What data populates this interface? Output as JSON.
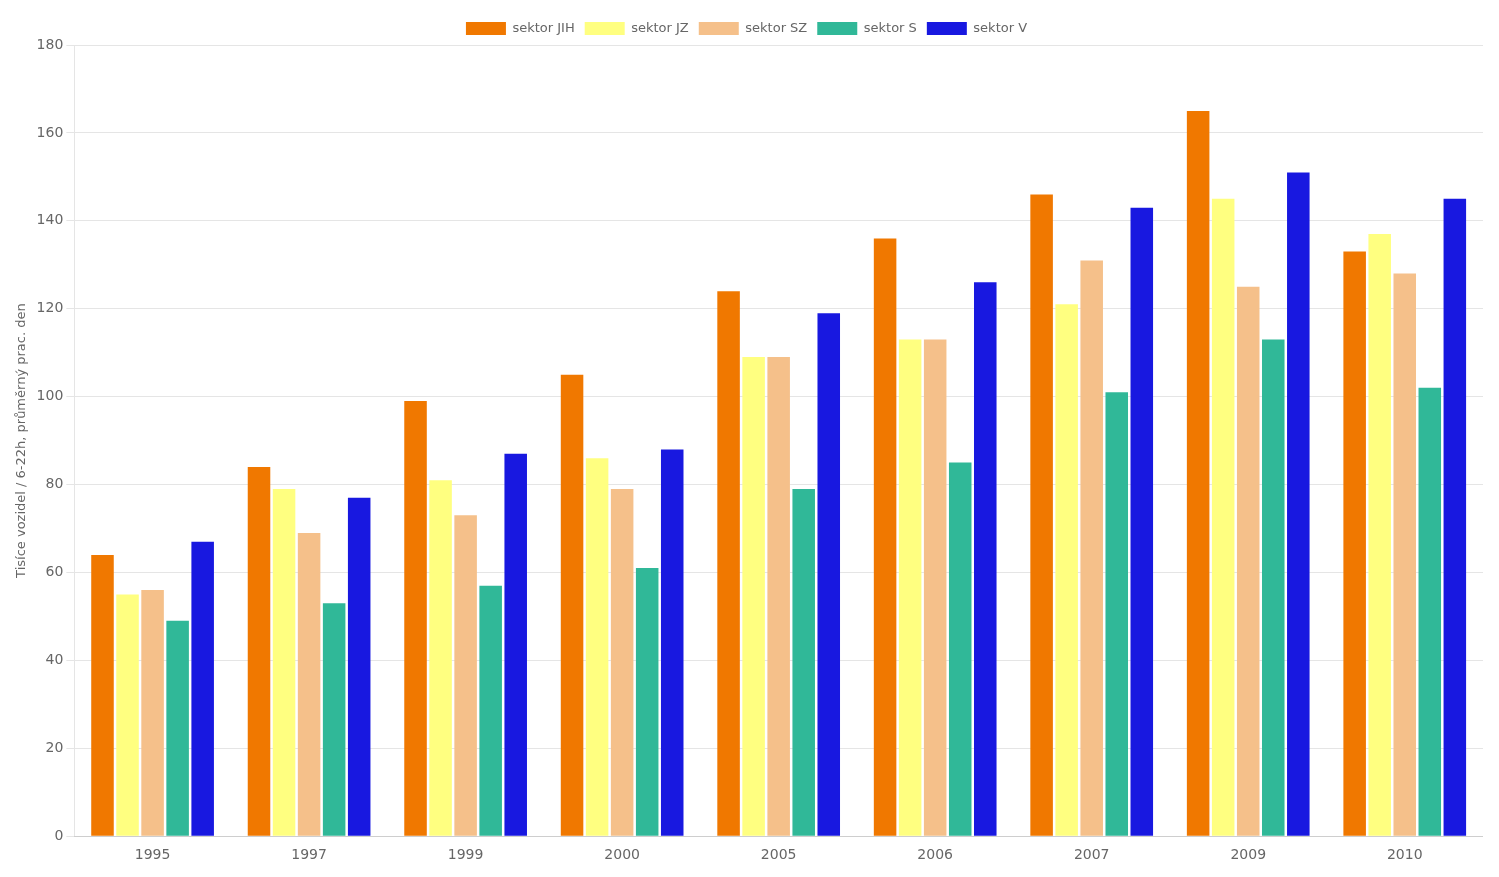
{
  "chart_data": {
    "type": "bar",
    "categories": [
      "1995",
      "1997",
      "1999",
      "2000",
      "2005",
      "2006",
      "2007",
      "2009",
      "2010"
    ],
    "series": [
      {
        "name": "sektor JIH",
        "color": "#F07800",
        "values": [
          64,
          84,
          99,
          105,
          124,
          136,
          146,
          165,
          133
        ]
      },
      {
        "name": "sektor JZ",
        "color": "#FFFF80",
        "values": [
          55,
          79,
          81,
          86,
          109,
          113,
          121,
          145,
          137
        ]
      },
      {
        "name": "sektor SZ",
        "color": "#F5C08A",
        "values": [
          56,
          69,
          73,
          79,
          109,
          113,
          131,
          125,
          128
        ]
      },
      {
        "name": "sektor S",
        "color": "#30B898",
        "values": [
          49,
          53,
          57,
          61,
          79,
          85,
          101,
          113,
          102
        ]
      },
      {
        "name": "sektor V",
        "color": "#1818E0",
        "values": [
          67,
          77,
          87,
          88,
          119,
          126,
          143,
          151,
          145
        ]
      }
    ],
    "ylabel": "Tisíce vozidel / 6-22h, průměrný prac. den",
    "ylim": [
      0,
      180
    ],
    "yticks": [
      0,
      20,
      40,
      60,
      80,
      100,
      120,
      140,
      160,
      180
    ],
    "grid": true,
    "legend": "top"
  }
}
